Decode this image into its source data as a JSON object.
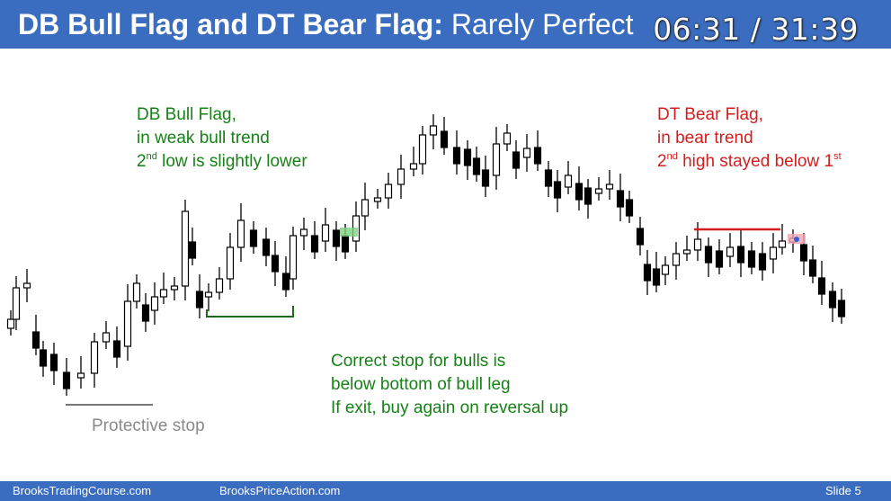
{
  "header": {
    "title_bold": "DB Bull Flag and DT Bear Flag:",
    "title_rest": " Rarely Perfect",
    "timer": "06:31 / 31:39"
  },
  "annotations": {
    "db_flag": {
      "line1": "DB Bull Flag,",
      "line2": "in weak bull trend",
      "line3_sup": "nd",
      "line3_pre": "2",
      "line3_post": " low is slightly lower"
    },
    "dt_flag": {
      "line1": "DT Bear Flag,",
      "line2": "in bear trend",
      "line3_pre": "2",
      "line3_sup": "nd",
      "line3_post": " high stayed below 1",
      "line3_sup2": "st"
    },
    "stop": {
      "line1": "Correct stop for bulls is",
      "line2": "below bottom of bull leg",
      "line3": "If exit, buy again on reversal up"
    },
    "protective": "Protective stop"
  },
  "footer": {
    "left": "BrooksTradingCourse.com",
    "center": "BrooksPriceAction.com",
    "right": "Slide  5"
  },
  "colors": {
    "header": "#3a6cc0",
    "green": "#178117",
    "red": "#d31e1e",
    "highlight_green": "#7ed27e",
    "highlight_red": "#f2a6b4"
  }
}
